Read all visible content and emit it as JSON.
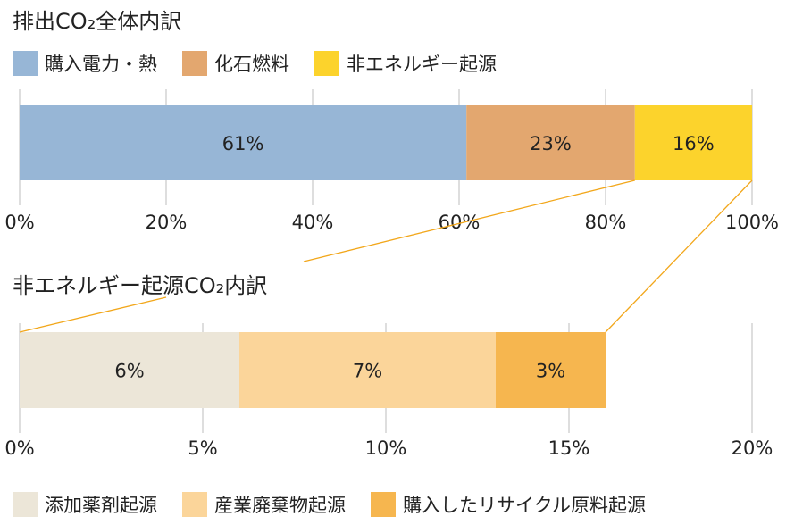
{
  "chart_data": [
    {
      "type": "bar",
      "orientation": "horizontal-stacked",
      "title": "排出CO₂全体内訳",
      "series": [
        {
          "name": "購入電力・熱",
          "value": 61,
          "label": "61%",
          "color": "#97b6d6"
        },
        {
          "name": "化石燃料",
          "value": 23,
          "label": "23%",
          "color": "#e3a76f"
        },
        {
          "name": "非エネルギー起源",
          "value": 16,
          "label": "16%",
          "color": "#fcd32c"
        }
      ],
      "xlim": [
        0,
        100
      ],
      "ticks": [
        "0%",
        "20%",
        "40%",
        "60%",
        "80%",
        "100%"
      ],
      "grid": true,
      "legend_position": "top"
    },
    {
      "type": "bar",
      "orientation": "horizontal-stacked",
      "title": "非エネルギー起源CO₂内訳",
      "series": [
        {
          "name": "添加薬剤起源",
          "value": 6,
          "label": "6%",
          "color": "#ece6d8"
        },
        {
          "name": "産業廃棄物起源",
          "value": 7,
          "label": "7%",
          "color": "#fbd59a"
        },
        {
          "name": "購入したリサイクル原料起源",
          "value": 3,
          "label": "3%",
          "color": "#f6b64f"
        }
      ],
      "xlim": [
        0,
        20
      ],
      "ticks": [
        "0%",
        "5%",
        "10%",
        "15%",
        "20%"
      ],
      "grid": true,
      "legend_position": "bottom"
    }
  ],
  "colors": {
    "grid": "#c8c8c8",
    "connector": "#f2a71b",
    "text": "#222222"
  }
}
